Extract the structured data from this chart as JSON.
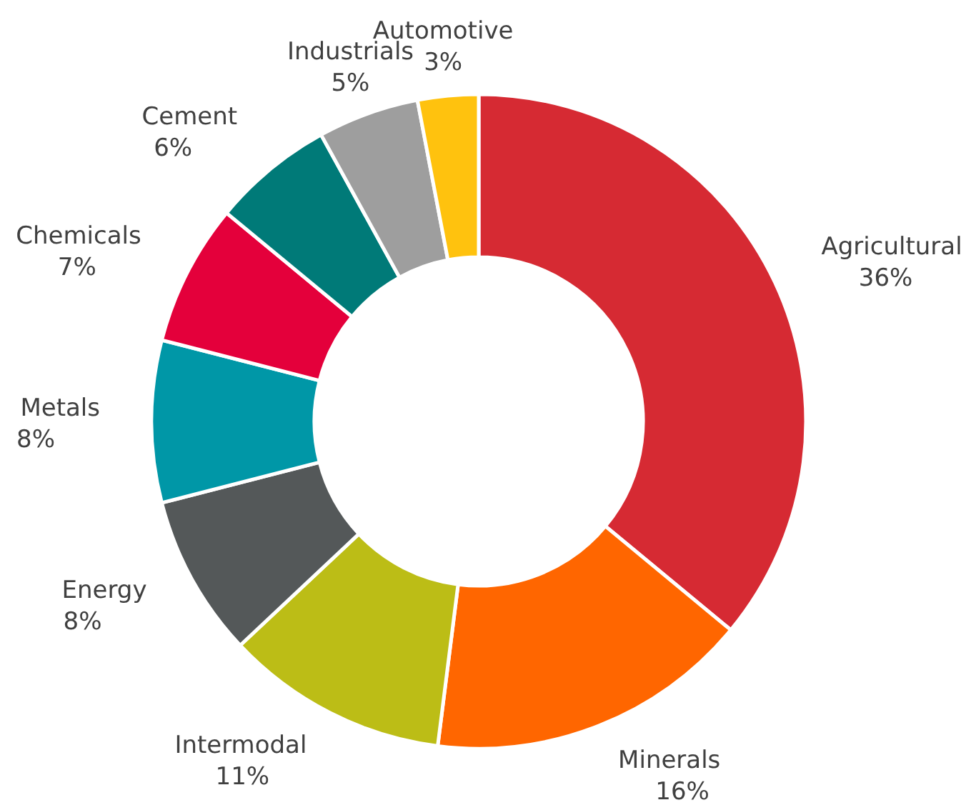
{
  "chart_data": {
    "type": "donut",
    "categories": [
      "Agricultural",
      "Minerals",
      "Intermodal",
      "Energy",
      "Metals",
      "Chemicals",
      "Cement",
      "Industrials",
      "Automotive"
    ],
    "values": [
      36,
      16,
      11,
      8,
      8,
      7,
      6,
      5,
      3
    ],
    "colors": [
      "#d62a33",
      "#ff6600",
      "#bcbd16",
      "#545859",
      "#0097a7",
      "#e4003b",
      "#007a78",
      "#9e9e9e",
      "#ffc20e"
    ],
    "value_labels": [
      "36%",
      "16%",
      "11%",
      "8%",
      "8%",
      "7%",
      "6%",
      "5%",
      "3%"
    ]
  }
}
